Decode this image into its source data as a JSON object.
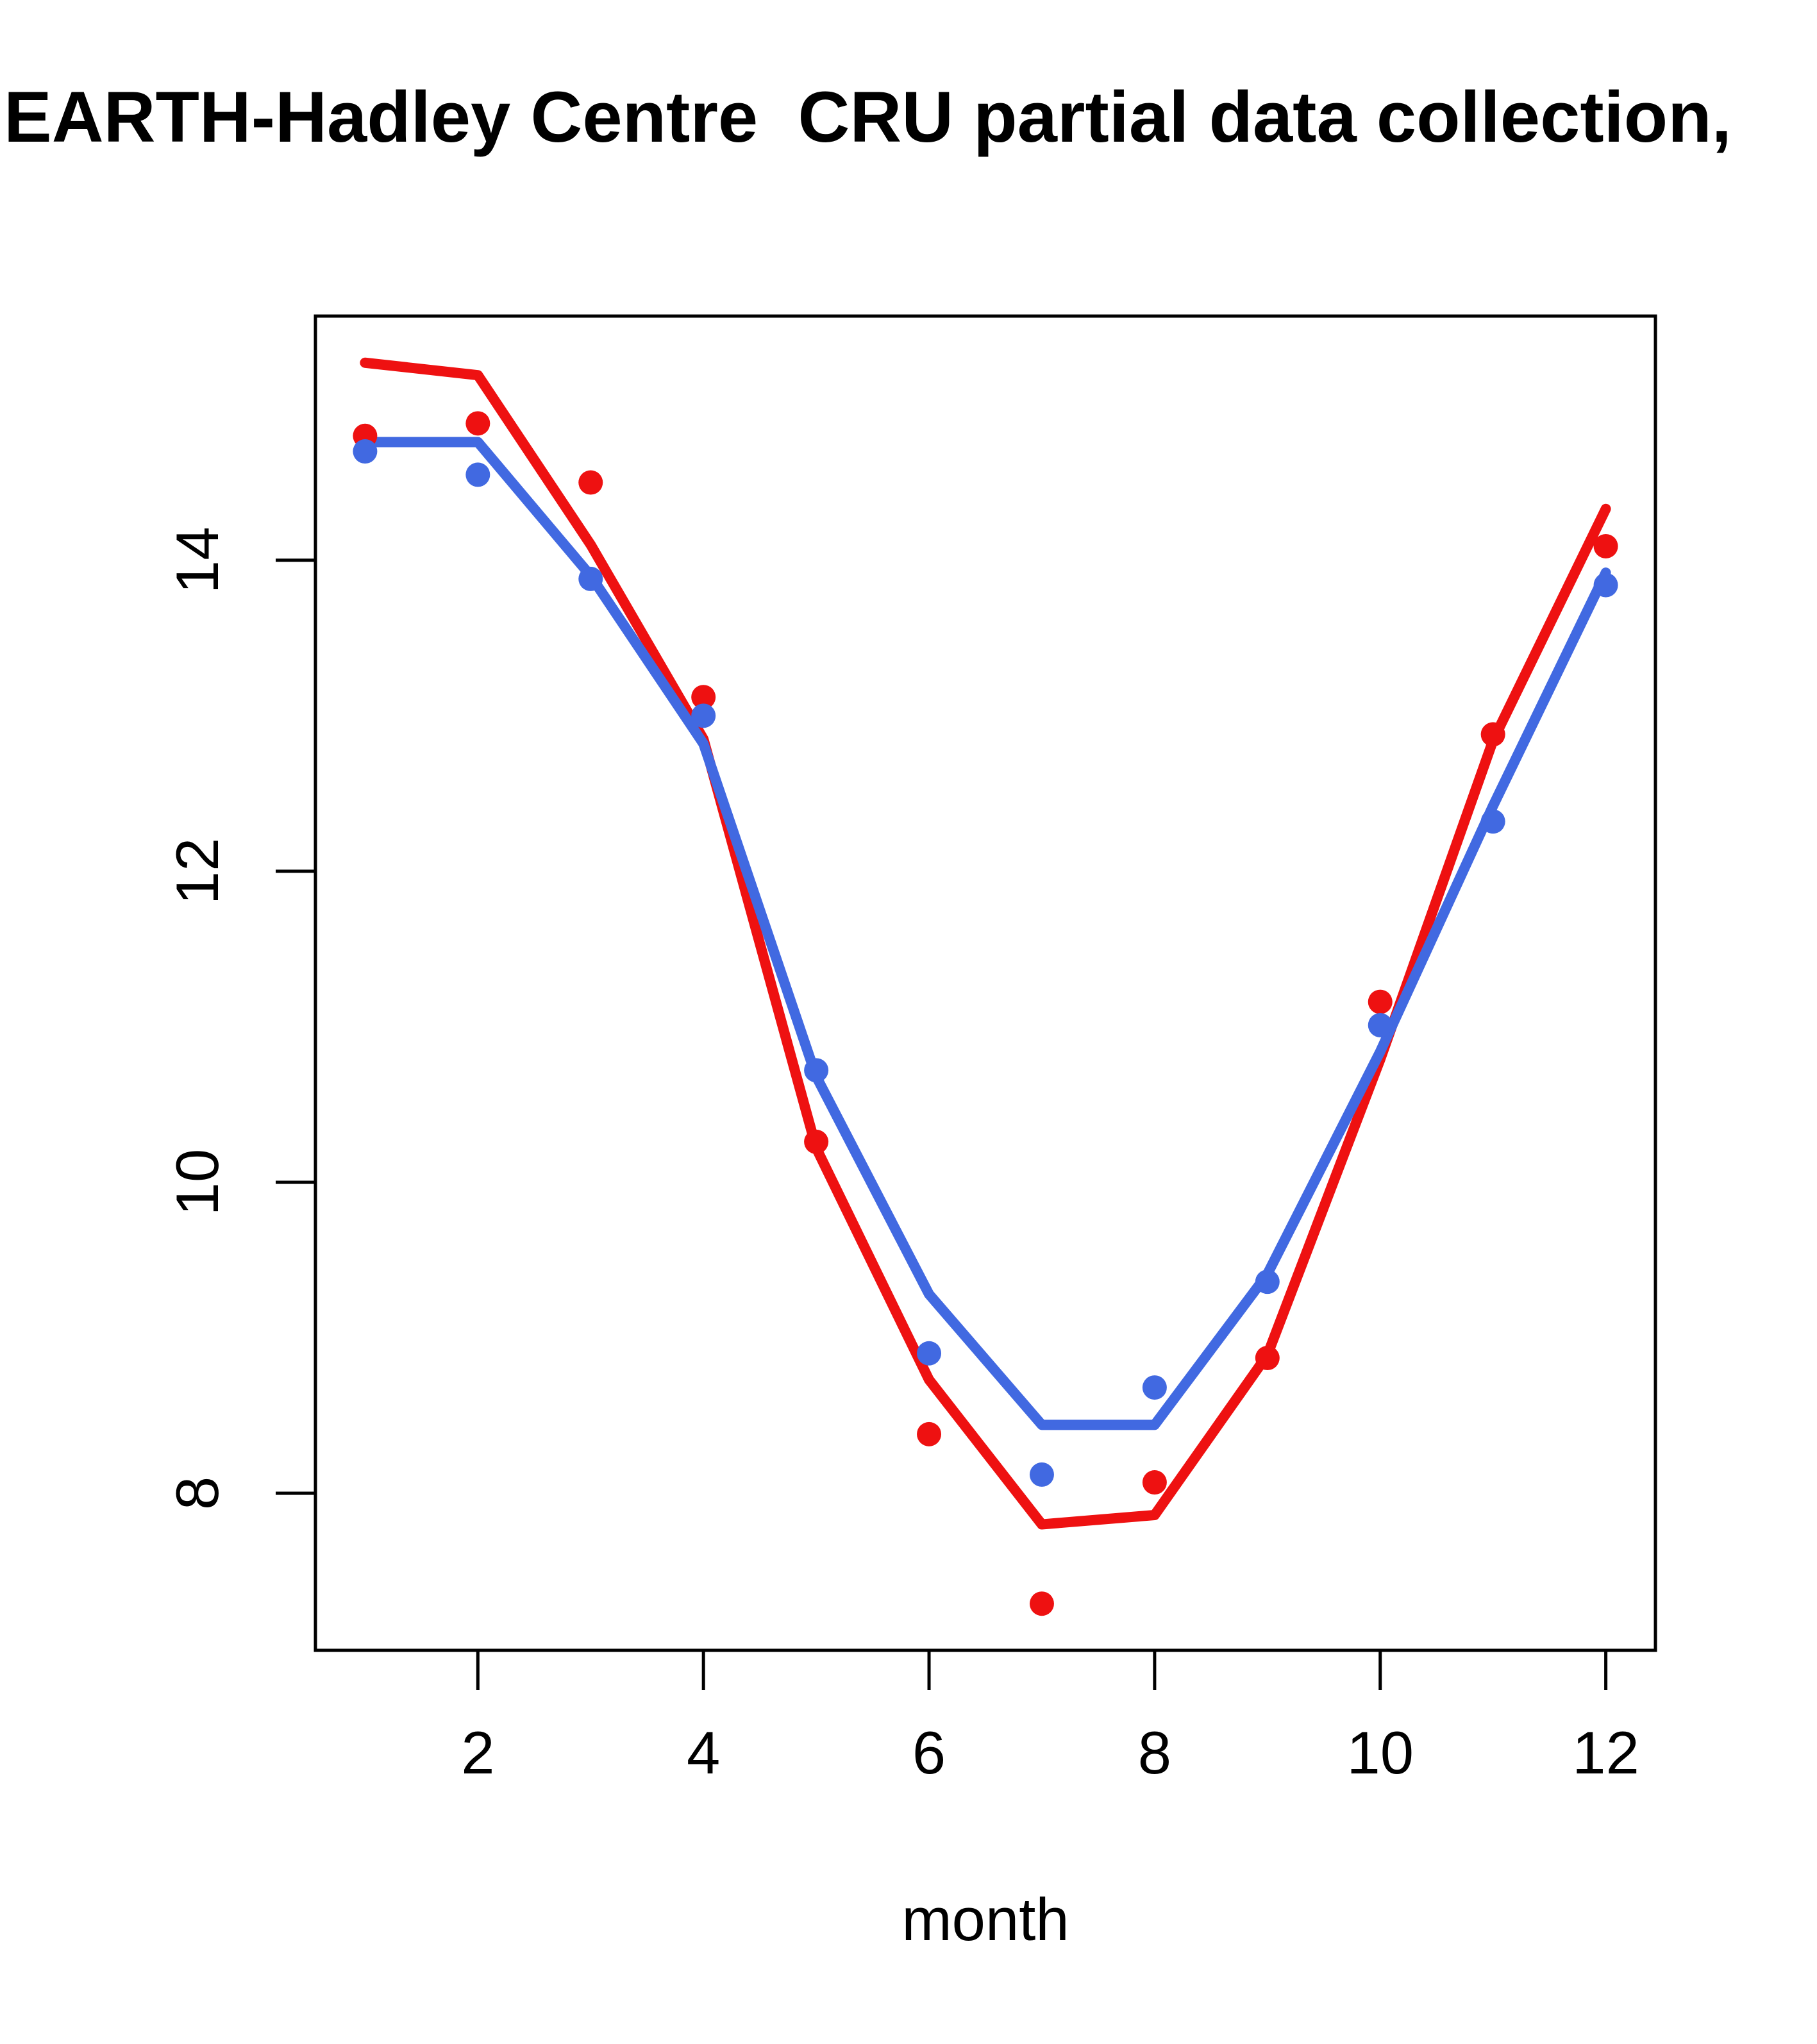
{
  "title": "EARTH-Hadley Centre  CRU partial data collection,",
  "chart_data": {
    "type": "line",
    "title": "EARTH-Hadley Centre  CRU partial data collection,",
    "xlabel": "month",
    "ylabel": "",
    "x": [
      1,
      2,
      3,
      4,
      5,
      6,
      7,
      8,
      9,
      10,
      11,
      12
    ],
    "x_ticks": [
      2,
      4,
      6,
      8,
      10,
      12
    ],
    "y_ticks": [
      8,
      10,
      12,
      14
    ],
    "xlim": [
      0.56,
      12.44
    ],
    "ylim": [
      6.99,
      15.57
    ],
    "grid": false,
    "legend": null,
    "series": [
      {
        "name": "red-line",
        "style": "line",
        "color": "#ee1111",
        "values": [
          15.27,
          15.19,
          14.1,
          12.85,
          10.22,
          8.73,
          7.8,
          7.86,
          8.89,
          10.79,
          12.84,
          14.33
        ]
      },
      {
        "name": "blue-line",
        "style": "line",
        "color": "#4169e1",
        "values": [
          14.76,
          14.76,
          13.9,
          12.82,
          10.68,
          9.28,
          8.44,
          8.44,
          9.41,
          10.84,
          12.42,
          13.92
        ]
      },
      {
        "name": "red-points",
        "style": "scatter",
        "color": "#ee1111",
        "values": [
          14.8,
          14.88,
          14.5,
          13.12,
          10.26,
          8.38,
          7.29,
          8.07,
          8.87,
          11.16,
          12.88,
          14.09
        ]
      },
      {
        "name": "blue-points",
        "style": "scatter",
        "color": "#4169e1",
        "values": [
          14.7,
          14.55,
          13.88,
          13.0,
          10.72,
          8.9,
          8.12,
          8.68,
          9.36,
          11.01,
          12.32,
          13.84
        ]
      }
    ]
  },
  "colors": {
    "red": "#ee1111",
    "blue": "#4169e1",
    "axis": "#000000",
    "background": "#ffffff"
  }
}
